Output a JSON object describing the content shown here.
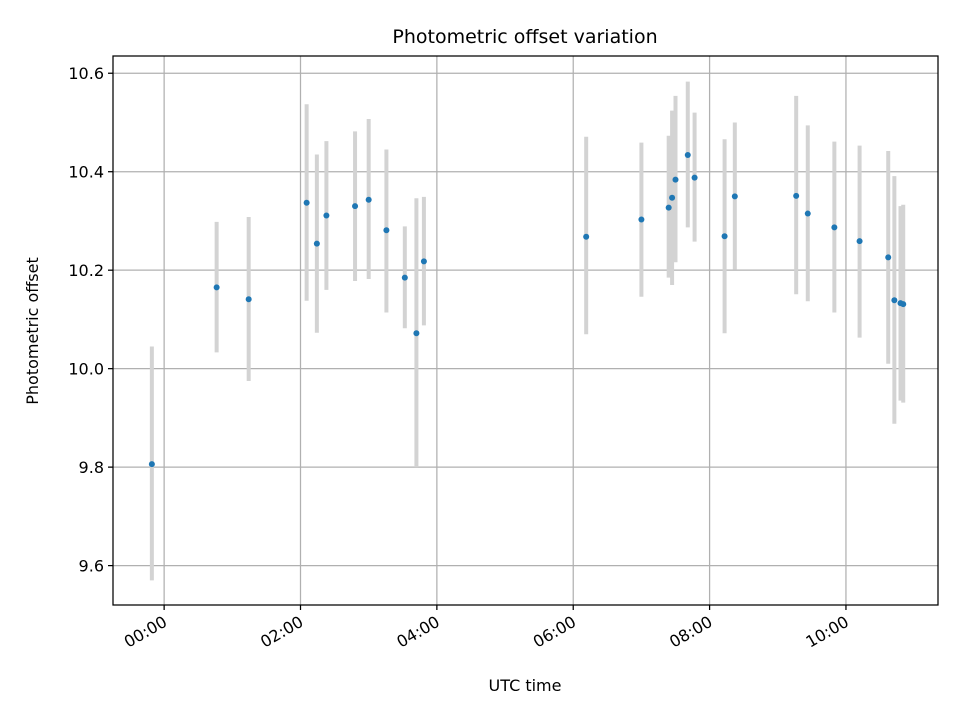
{
  "chart_data": {
    "type": "scatter",
    "title": "Photometric offset variation",
    "xlabel": "UTC time",
    "ylabel": "Photometric offset",
    "x_unit": "hours",
    "xlim": [
      -0.75,
      11.35
    ],
    "ylim": [
      9.52,
      10.635
    ],
    "x_ticks": [
      {
        "value": 0,
        "label": "00:00"
      },
      {
        "value": 2,
        "label": "02:00"
      },
      {
        "value": 4,
        "label": "04:00"
      },
      {
        "value": 6,
        "label": "06:00"
      },
      {
        "value": 8,
        "label": "08:00"
      },
      {
        "value": 10,
        "label": "10:00"
      }
    ],
    "y_ticks": [
      {
        "value": 9.6,
        "label": "9.6"
      },
      {
        "value": 9.8,
        "label": "9.8"
      },
      {
        "value": 10.0,
        "label": "10.0"
      },
      {
        "value": 10.2,
        "label": "10.2"
      },
      {
        "value": 10.4,
        "label": "10.4"
      },
      {
        "value": 10.6,
        "label": "10.6"
      }
    ],
    "grid": true,
    "marker_color": "#1f77b4",
    "errorbar_color": "#d3d3d3",
    "points": [
      {
        "x": -0.18,
        "y": 9.806,
        "low": 9.57,
        "high": 10.045
      },
      {
        "x": 0.77,
        "y": 10.165,
        "low": 10.033,
        "high": 10.298
      },
      {
        "x": 1.24,
        "y": 10.141,
        "low": 9.975,
        "high": 10.308
      },
      {
        "x": 2.09,
        "y": 10.337,
        "low": 10.138,
        "high": 10.537
      },
      {
        "x": 2.24,
        "y": 10.254,
        "low": 10.073,
        "high": 10.435
      },
      {
        "x": 2.38,
        "y": 10.311,
        "low": 10.16,
        "high": 10.462
      },
      {
        "x": 2.8,
        "y": 10.33,
        "low": 10.178,
        "high": 10.482
      },
      {
        "x": 3.0,
        "y": 10.343,
        "low": 10.182,
        "high": 10.507
      },
      {
        "x": 3.26,
        "y": 10.281,
        "low": 10.114,
        "high": 10.445
      },
      {
        "x": 3.53,
        "y": 10.185,
        "low": 10.082,
        "high": 10.289
      },
      {
        "x": 3.7,
        "y": 10.072,
        "low": 9.8,
        "high": 10.346
      },
      {
        "x": 3.81,
        "y": 10.218,
        "low": 10.088,
        "high": 10.349
      },
      {
        "x": 6.19,
        "y": 10.268,
        "low": 10.07,
        "high": 10.471
      },
      {
        "x": 7.0,
        "y": 10.303,
        "low": 10.146,
        "high": 10.459
      },
      {
        "x": 7.4,
        "y": 10.327,
        "low": 10.185,
        "high": 10.473
      },
      {
        "x": 7.45,
        "y": 10.347,
        "low": 10.17,
        "high": 10.524
      },
      {
        "x": 7.5,
        "y": 10.384,
        "low": 10.216,
        "high": 10.554
      },
      {
        "x": 7.68,
        "y": 10.434,
        "low": 10.287,
        "high": 10.583
      },
      {
        "x": 7.78,
        "y": 10.388,
        "low": 10.258,
        "high": 10.52
      },
      {
        "x": 8.22,
        "y": 10.269,
        "low": 10.072,
        "high": 10.466
      },
      {
        "x": 8.37,
        "y": 10.35,
        "low": 10.201,
        "high": 10.5
      },
      {
        "x": 9.27,
        "y": 10.351,
        "low": 10.151,
        "high": 10.554
      },
      {
        "x": 9.44,
        "y": 10.315,
        "low": 10.137,
        "high": 10.494
      },
      {
        "x": 9.83,
        "y": 10.287,
        "low": 10.114,
        "high": 10.461
      },
      {
        "x": 10.2,
        "y": 10.259,
        "low": 10.063,
        "high": 10.453
      },
      {
        "x": 10.62,
        "y": 10.226,
        "low": 10.01,
        "high": 10.442
      },
      {
        "x": 10.71,
        "y": 10.139,
        "low": 9.888,
        "high": 10.391
      },
      {
        "x": 10.8,
        "y": 10.133,
        "low": 9.935,
        "high": 10.33
      },
      {
        "x": 10.84,
        "y": 10.131,
        "low": 9.931,
        "high": 10.333
      }
    ]
  }
}
